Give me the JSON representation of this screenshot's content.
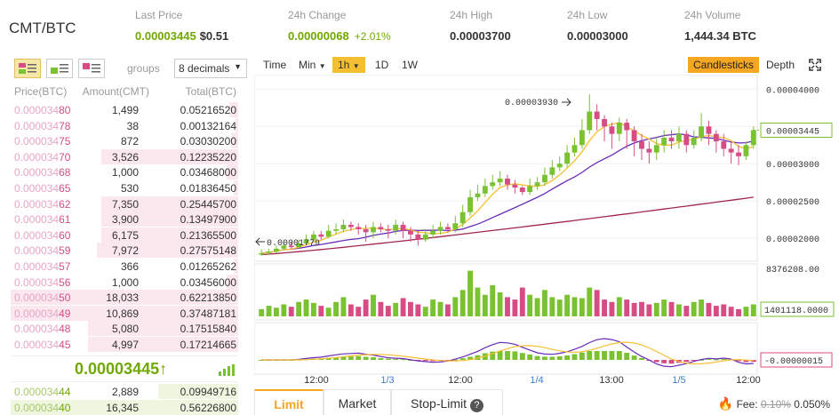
{
  "ticker": {
    "pair": "CMT/BTC",
    "last_price_label": "Last Price",
    "last_price": "0.00003445",
    "last_price_usd": "$0.51",
    "change_label": "24h Change",
    "change": "0.00000068",
    "change_pct": "+2.01%",
    "high_label": "24h High",
    "high": "0.00003700",
    "low_label": "24h Low",
    "low": "0.00003000",
    "volume_label": "24h Volume",
    "volume": "1,444.34 BTC"
  },
  "orderbook": {
    "groups_label": "groups",
    "decimals": "8 decimals",
    "col_price": "Price(BTC)",
    "col_amount": "Amount(CMT)",
    "col_total": "Total(BTC)",
    "asks": [
      {
        "p1": "0.000034",
        "p2": "80",
        "amount": "1,499",
        "total": "0.05216520",
        "depth": 0.04
      },
      {
        "p1": "0.000034",
        "p2": "78",
        "amount": "38",
        "total": "0.00132164",
        "depth": 0.01
      },
      {
        "p1": "0.000034",
        "p2": "75",
        "amount": "872",
        "total": "0.03030200",
        "depth": 0.03
      },
      {
        "p1": "0.000034",
        "p2": "70",
        "amount": "3,526",
        "total": "0.12235220",
        "depth": 0.6
      },
      {
        "p1": "0.000034",
        "p2": "68",
        "amount": "1,000",
        "total": "0.03468000",
        "depth": 0.05
      },
      {
        "p1": "0.000034",
        "p2": "65",
        "amount": "530",
        "total": "0.01836450",
        "depth": 0.02
      },
      {
        "p1": "0.000034",
        "p2": "62",
        "amount": "7,350",
        "total": "0.25445700",
        "depth": 0.6
      },
      {
        "p1": "0.000034",
        "p2": "61",
        "amount": "3,900",
        "total": "0.13497900",
        "depth": 0.6
      },
      {
        "p1": "0.000034",
        "p2": "60",
        "amount": "6,175",
        "total": "0.21365500",
        "depth": 0.6
      },
      {
        "p1": "0.000034",
        "p2": "59",
        "amount": "7,972",
        "total": "0.27575148",
        "depth": 0.62
      },
      {
        "p1": "0.000034",
        "p2": "57",
        "amount": "366",
        "total": "0.01265262",
        "depth": 0.02
      },
      {
        "p1": "0.000034",
        "p2": "56",
        "amount": "1,000",
        "total": "0.03456000",
        "depth": 0.05
      },
      {
        "p1": "0.000034",
        "p2": "50",
        "amount": "18,033",
        "total": "0.62213850",
        "depth": 1.0
      },
      {
        "p1": "0.000034",
        "p2": "49",
        "amount": "10,869",
        "total": "0.37487181",
        "depth": 1.0
      },
      {
        "p1": "0.000034",
        "p2": "48",
        "amount": "5,080",
        "total": "0.17515840",
        "depth": 0.66
      },
      {
        "p1": "0.000034",
        "p2": "45",
        "amount": "4,997",
        "total": "0.17214665",
        "depth": 0.66
      }
    ],
    "last_price": "0.00003445",
    "last_arrow": "↑",
    "bids": [
      {
        "p1": "0.000034",
        "p2": "44",
        "amount": "2,889",
        "total": "0.09949716",
        "depth": 0.35
      },
      {
        "p1": "0.000034",
        "p2": "40",
        "amount": "16,345",
        "total": "0.56226800",
        "depth": 1.0
      }
    ]
  },
  "chart": {
    "buttons": {
      "time": "Time",
      "min": "Min",
      "h1": "1h",
      "d1": "1D",
      "w1": "1W",
      "candles": "Candlesticks",
      "depth": "Depth"
    },
    "price_ticks": [
      "0.00004000",
      "0.00003500",
      "0.00003000",
      "0.00002500",
      "0.00002000"
    ],
    "current_price_tag": "0.00003445",
    "high_marker": "0.00003930",
    "low_marker": "0.00001779",
    "volume_max": "8376208.00",
    "volume_tag": "1401118.0000",
    "macd_tag": "-0.00000015",
    "x_ticks": [
      {
        "label": "12:00",
        "blue": false
      },
      {
        "label": "1/3",
        "blue": true
      },
      {
        "label": "12:00",
        "blue": false
      },
      {
        "label": "1/4",
        "blue": true
      },
      {
        "label": "13:00",
        "blue": false
      },
      {
        "label": "1/5",
        "blue": true
      },
      {
        "label": "12:00",
        "blue": false
      }
    ]
  },
  "chart_data": {
    "type": "candlestick",
    "interval": "1h",
    "ylim": [
      1.75e-05,
      4.1e-05
    ],
    "candles": [
      [
        1.78,
        1.8,
        1.85,
        1.76
      ],
      [
        1.8,
        1.82,
        1.86,
        1.78
      ],
      [
        1.82,
        1.86,
        1.9,
        1.8
      ],
      [
        1.86,
        1.9,
        1.95,
        1.84
      ],
      [
        1.9,
        1.88,
        1.95,
        1.85
      ],
      [
        1.88,
        1.93,
        1.98,
        1.86
      ],
      [
        1.93,
        1.98,
        2.05,
        1.9
      ],
      [
        1.98,
        2.05,
        2.1,
        1.95
      ],
      [
        2.05,
        2.02,
        2.1,
        1.98
      ],
      [
        2.02,
        2.1,
        2.18,
        2.0
      ],
      [
        2.1,
        2.12,
        2.2,
        2.05
      ],
      [
        2.12,
        2.18,
        2.25,
        2.08
      ],
      [
        2.18,
        2.15,
        2.22,
        2.1
      ],
      [
        2.15,
        2.12,
        2.2,
        2.05
      ],
      [
        2.12,
        2.08,
        2.18,
        1.95
      ],
      [
        2.08,
        2.15,
        2.22,
        2.0
      ],
      [
        2.15,
        2.12,
        2.2,
        2.08
      ],
      [
        2.12,
        2.1,
        2.18,
        2.0
      ],
      [
        2.1,
        2.18,
        2.25,
        2.05
      ],
      [
        2.18,
        2.1,
        2.22,
        2.0
      ],
      [
        2.1,
        2.05,
        2.15,
        1.95
      ],
      [
        2.05,
        1.98,
        2.1,
        1.9
      ],
      [
        1.98,
        2.05,
        2.12,
        1.95
      ],
      [
        2.05,
        2.1,
        2.18,
        2.0
      ],
      [
        2.1,
        2.15,
        2.22,
        2.05
      ],
      [
        2.15,
        2.12,
        2.2,
        2.08
      ],
      [
        2.12,
        2.2,
        2.3,
        2.08
      ],
      [
        2.2,
        2.35,
        2.45,
        2.15
      ],
      [
        2.35,
        2.55,
        2.65,
        2.3
      ],
      [
        2.55,
        2.6,
        2.72,
        2.5
      ],
      [
        2.6,
        2.7,
        2.8,
        2.55
      ],
      [
        2.7,
        2.75,
        2.85,
        2.65
      ],
      [
        2.75,
        2.8,
        2.9,
        2.7
      ],
      [
        2.8,
        2.72,
        2.85,
        2.65
      ],
      [
        2.72,
        2.68,
        2.78,
        2.6
      ],
      [
        2.68,
        2.62,
        2.7,
        2.58
      ],
      [
        2.62,
        2.7,
        2.8,
        2.58
      ],
      [
        2.7,
        2.75,
        2.82,
        2.65
      ],
      [
        2.75,
        2.85,
        2.95,
        2.7
      ],
      [
        2.85,
        2.95,
        3.05,
        2.8
      ],
      [
        2.95,
        3.0,
        3.1,
        2.9
      ],
      [
        3.0,
        3.15,
        3.25,
        2.95
      ],
      [
        3.15,
        3.25,
        3.35,
        3.1
      ],
      [
        3.25,
        3.45,
        3.6,
        3.2
      ],
      [
        3.45,
        3.7,
        3.93,
        3.4
      ],
      [
        3.7,
        3.6,
        3.8,
        3.45
      ],
      [
        3.6,
        3.5,
        3.65,
        3.3
      ],
      [
        3.5,
        3.4,
        3.55,
        3.2
      ],
      [
        3.4,
        3.55,
        3.62,
        3.3
      ],
      [
        3.55,
        3.45,
        3.6,
        3.2
      ],
      [
        3.45,
        3.3,
        3.5,
        3.1
      ],
      [
        3.3,
        3.2,
        3.4,
        3.05
      ],
      [
        3.2,
        3.15,
        3.3,
        3.0
      ],
      [
        3.15,
        3.25,
        3.35,
        3.05
      ],
      [
        3.25,
        3.35,
        3.45,
        3.15
      ],
      [
        3.35,
        3.3,
        3.45,
        3.2
      ],
      [
        3.3,
        3.4,
        3.5,
        3.2
      ],
      [
        3.4,
        3.25,
        3.45,
        3.15
      ],
      [
        3.25,
        3.35,
        3.45,
        3.2
      ],
      [
        3.35,
        3.5,
        3.68,
        3.3
      ],
      [
        3.5,
        3.4,
        3.58,
        3.25
      ],
      [
        3.4,
        3.3,
        3.45,
        3.15
      ],
      [
        3.3,
        3.2,
        3.4,
        3.1
      ],
      [
        3.2,
        3.15,
        3.3,
        3.0
      ],
      [
        3.15,
        3.1,
        3.25,
        2.98
      ],
      [
        3.1,
        3.25,
        3.3,
        3.05
      ],
      [
        3.25,
        3.45,
        3.5,
        3.2
      ]
    ],
    "candle_units": "x 0.00001 BTC, [open, close, high, low]",
    "volume": [
      0.15,
      0.22,
      0.18,
      0.25,
      0.2,
      0.3,
      0.35,
      0.28,
      0.22,
      0.18,
      0.3,
      0.4,
      0.25,
      0.2,
      0.35,
      0.45,
      0.3,
      0.22,
      0.28,
      0.38,
      0.3,
      0.25,
      0.2,
      0.35,
      0.3,
      0.25,
      0.4,
      0.55,
      0.95,
      0.6,
      0.45,
      0.65,
      0.5,
      0.4,
      0.35,
      0.6,
      0.45,
      0.38,
      0.55,
      0.4,
      0.35,
      0.45,
      0.4,
      0.38,
      0.6,
      0.55,
      0.35,
      0.3,
      0.4,
      0.35,
      0.28,
      0.3,
      0.25,
      0.28,
      0.35,
      0.3,
      0.25,
      0.22,
      0.3,
      0.35,
      0.28,
      0.22,
      0.25,
      0.2,
      0.15,
      0.2,
      0.25
    ],
    "volume_units": "fraction of 8376208.00"
  },
  "trade": {
    "tab_limit": "Limit",
    "tab_market": "Market",
    "tab_stoplimit": "Stop-Limit",
    "help": "?",
    "fee_label": "Fee:",
    "fee_old": "0.10%",
    "fee_new": "0.050%"
  },
  "colors": {
    "up": "#7ac231",
    "down": "#d84c86",
    "ma7": "#f5bf32",
    "ma25": "#6a2ab8",
    "ma99": "#a02552",
    "accent": "#f5a623"
  }
}
